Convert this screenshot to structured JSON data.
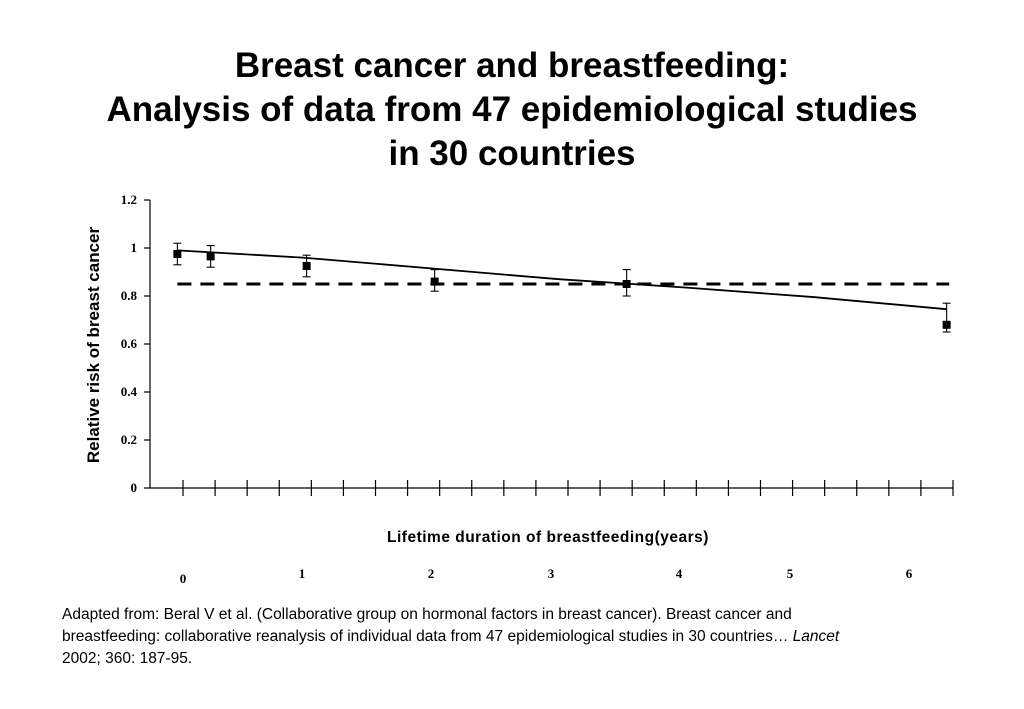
{
  "title": {
    "line1": "Breast cancer and breastfeeding:",
    "line2": "Analysis of data from 47 epidemiological studies",
    "line3": "in 30 countries"
  },
  "chart_data": {
    "type": "scatter",
    "title": "Breast cancer and breastfeeding: Analysis of data from 47 epidemiological studies in 30 countries",
    "xlabel": "Lifetime duration of breastfeeding(years)",
    "ylabel": "Relative risk of breast cancer",
    "xlim": [
      -0.1,
      6.2
    ],
    "ylim": [
      0,
      1.2
    ],
    "y_ticks": [
      0,
      0.2,
      0.4,
      0.6,
      0.8,
      1,
      1.2
    ],
    "y_tick_labels": [
      "0",
      "0.2",
      "0.4",
      "0.6",
      "0.8",
      "1",
      "1.2"
    ],
    "x_tick_labels": [
      {
        "label": "0",
        "x": 0
      },
      {
        "label": "1",
        "x": 1
      },
      {
        "label": "2",
        "x": 2
      },
      {
        "label": "3",
        "x": 3
      },
      {
        "label": "4",
        "x": 4
      },
      {
        "label": "5",
        "x": 5
      },
      {
        "label": "6",
        "x": 6
      }
    ],
    "points": [
      {
        "x": 0.02,
        "y": 0.975,
        "lo": 0.93,
        "hi": 1.02
      },
      {
        "x": 0.28,
        "y": 0.965,
        "lo": 0.92,
        "hi": 1.01
      },
      {
        "x": 1.03,
        "y": 0.925,
        "lo": 0.88,
        "hi": 0.97
      },
      {
        "x": 2.03,
        "y": 0.86,
        "lo": 0.82,
        "hi": 0.91
      },
      {
        "x": 3.53,
        "y": 0.85,
        "lo": 0.8,
        "hi": 0.91
      },
      {
        "x": 6.03,
        "y": 0.68,
        "lo": 0.65,
        "hi": 0.77
      }
    ],
    "series": [
      {
        "name": "Trend line",
        "style": "solid",
        "x": [
          0.02,
          1,
          2,
          3,
          4,
          5,
          6.03
        ],
        "values": [
          0.99,
          0.96,
          0.915,
          0.87,
          0.835,
          0.795,
          0.745
        ]
      },
      {
        "name": "Reference",
        "style": "dashed",
        "x": [
          0.02,
          6.05
        ],
        "values": [
          0.85,
          0.85
        ]
      }
    ],
    "colors": {
      "line": "#000000",
      "marker": "#000000"
    }
  },
  "citation": {
    "text_before": "Adapted from: Beral V et al. (Collaborative group on hormonal factors in breast cancer). Breast cancer and breastfeeding: collaborative reanalysis of individual data from 47 epidemiological studies in 30 countries… ",
    "journal": "Lancet",
    "text_after": " 2002; 360: 187-95."
  }
}
